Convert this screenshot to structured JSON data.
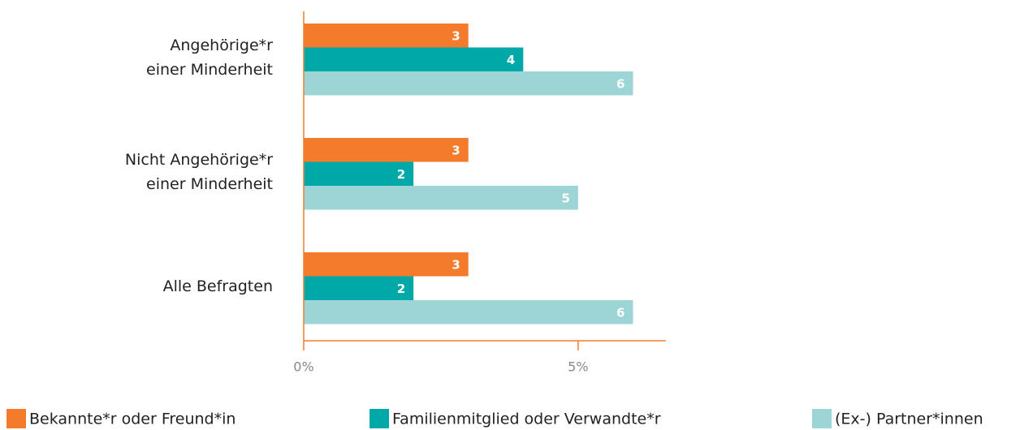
{
  "chart_data": {
    "type": "hbar",
    "categories": [
      "Angehörige*r\neiner Minderheit",
      "Nicht Angehörige*r\neiner Minderheit",
      "Alle Befragten"
    ],
    "series": [
      {
        "name": "Bekannte*r oder Freund*in",
        "color": "#f47b2c",
        "values": [
          3,
          3,
          3
        ]
      },
      {
        "name": "Familienmitglied oder Verwandte*r",
        "color": "#00a9a8",
        "values": [
          4,
          2,
          2
        ]
      },
      {
        "name": "(Ex-) Partner*innen",
        "color": "#9dd5d7",
        "values": [
          6,
          5,
          6
        ]
      }
    ],
    "xlim": [
      0,
      6.6
    ],
    "xticks": [
      {
        "value": 0,
        "label": "0%"
      },
      {
        "value": 5,
        "label": "5%"
      }
    ],
    "axis_color": "#f07f2e"
  }
}
